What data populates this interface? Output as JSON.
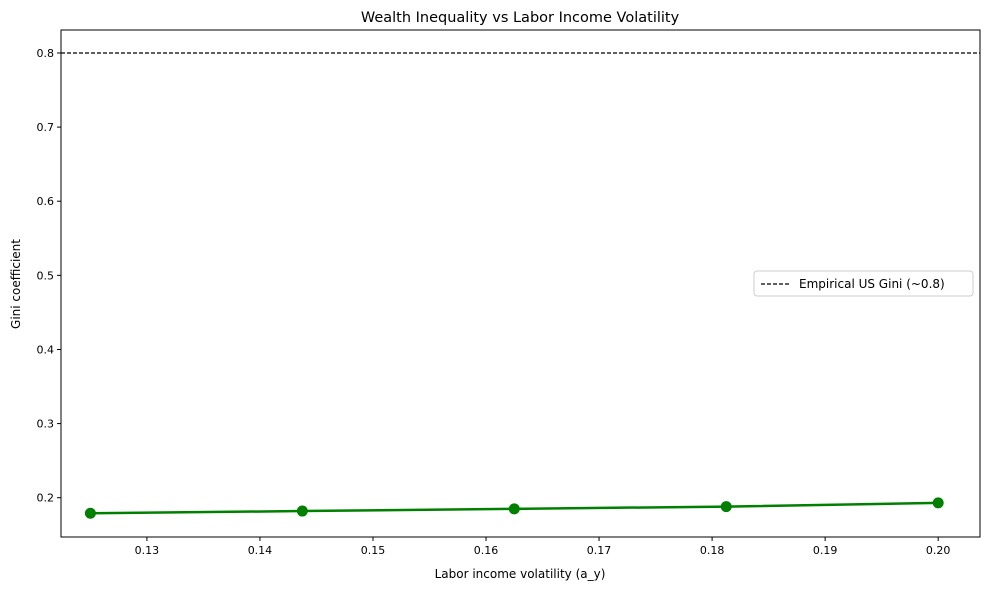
{
  "chart_data": {
    "type": "line",
    "title": "Wealth Inequality vs Labor Income Volatility",
    "xlabel": "Labor income volatility (a_y)",
    "ylabel": "Gini coefficient",
    "xlim": [
      0.1224,
      0.2037
    ],
    "ylim": [
      0.147,
      0.831
    ],
    "xticks": [
      0.13,
      0.14,
      0.15,
      0.16,
      0.17,
      0.18,
      0.19,
      0.2
    ],
    "xtick_labels": [
      "0.13",
      "0.14",
      "0.15",
      "0.16",
      "0.17",
      "0.18",
      "0.19",
      "0.20"
    ],
    "yticks": [
      0.2,
      0.3,
      0.4,
      0.5,
      0.6,
      0.7,
      0.8
    ],
    "ytick_labels": [
      "0.2",
      "0.3",
      "0.4",
      "0.5",
      "0.6",
      "0.7",
      "0.8"
    ],
    "grid": false,
    "series": [
      {
        "x": [
          0.125,
          0.14375,
          0.1625,
          0.18125,
          0.2
        ],
        "y": [
          0.179,
          0.182,
          0.185,
          0.188,
          0.193
        ],
        "color": "#008000",
        "marker": "circle"
      }
    ],
    "hlines": [
      {
        "y": 0.8,
        "name": "Empirical US Gini (~0.8)",
        "style": "dashed",
        "color": "#000000"
      }
    ],
    "legend": {
      "placement": "center-right",
      "entries": [
        "Empirical US Gini (~0.8)"
      ]
    }
  }
}
